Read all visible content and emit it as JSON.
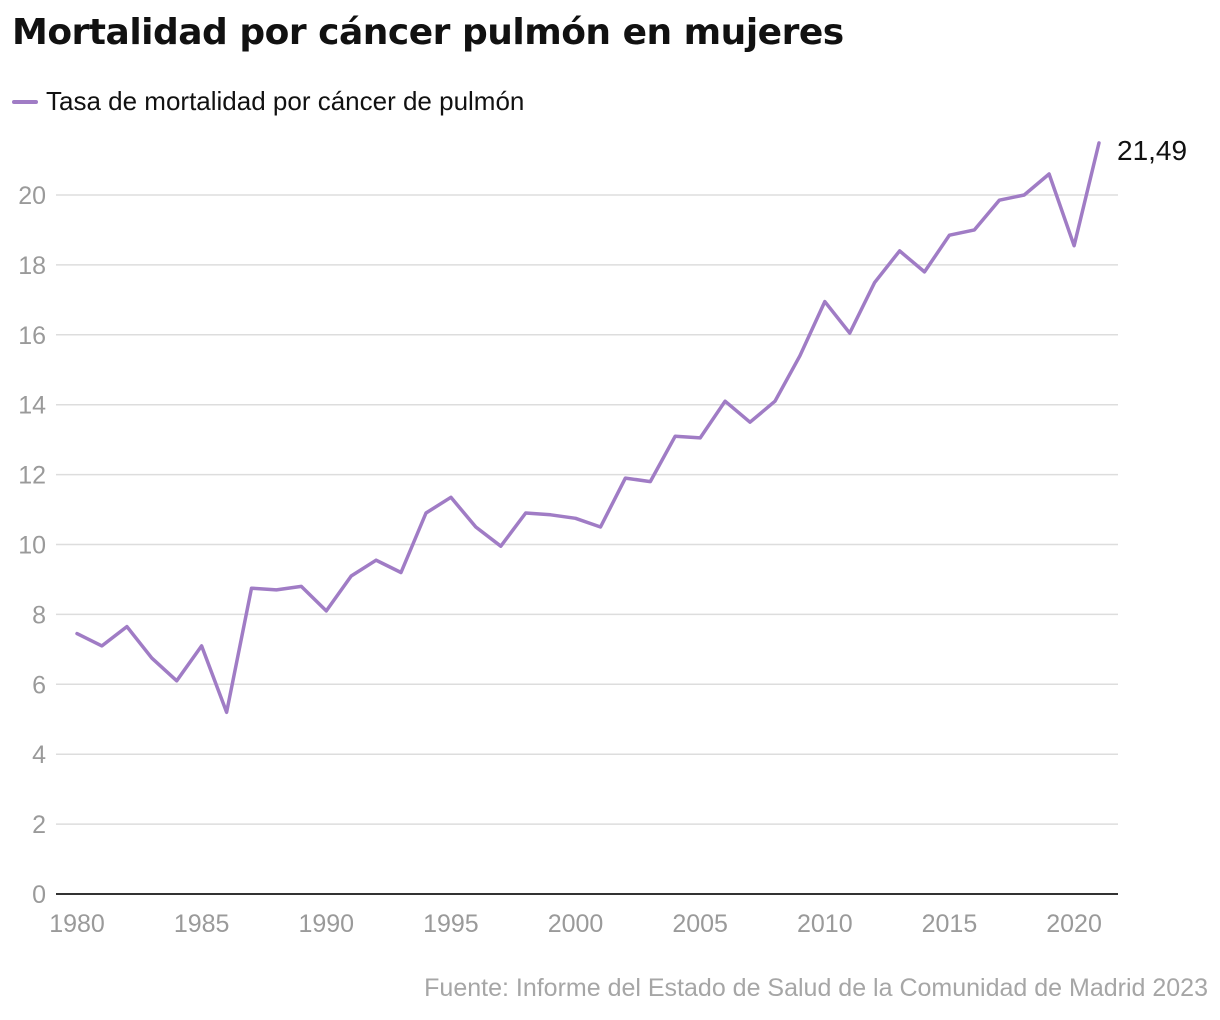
{
  "chart_data": {
    "type": "line",
    "title": "Mortalidad por cáncer pulmón en mujeres",
    "xlabel": "",
    "ylabel": "",
    "x": [
      1980,
      1981,
      1982,
      1983,
      1984,
      1985,
      1986,
      1987,
      1988,
      1989,
      1990,
      1991,
      1992,
      1993,
      1994,
      1995,
      1996,
      1997,
      1998,
      1999,
      2000,
      2001,
      2002,
      2003,
      2004,
      2005,
      2006,
      2007,
      2008,
      2009,
      2010,
      2011,
      2012,
      2013,
      2014,
      2015,
      2016,
      2017,
      2018,
      2019,
      2020,
      2021
    ],
    "series": [
      {
        "name": "Tasa de mortalidad por cáncer de pulmón",
        "color": "#a07cc5",
        "values": [
          7.45,
          7.1,
          7.65,
          6.75,
          6.1,
          7.1,
          5.2,
          8.75,
          8.7,
          8.8,
          8.1,
          9.1,
          9.55,
          9.2,
          10.9,
          11.35,
          10.5,
          9.95,
          10.9,
          10.85,
          10.75,
          10.5,
          11.9,
          11.8,
          13.1,
          13.05,
          14.1,
          13.5,
          14.1,
          15.4,
          16.95,
          16.05,
          17.5,
          18.4,
          17.8,
          18.85,
          19.0,
          19.85,
          20.0,
          20.6,
          18.55,
          21.49
        ]
      }
    ],
    "end_label": "21,49",
    "xticks": [
      "1980",
      "1985",
      "1990",
      "1995",
      "2000",
      "2005",
      "2010",
      "2015",
      "2020"
    ],
    "yticks": [
      "0",
      "2",
      "4",
      "6",
      "8",
      "10",
      "12",
      "14",
      "16",
      "18",
      "20"
    ],
    "xlim": [
      1980,
      2021
    ],
    "ylim": [
      0,
      21.49
    ],
    "grid": true,
    "legend_position": "top-left",
    "source": "Fuente: Informe del Estado de Salud de la Comunidad de Madrid 2023"
  }
}
